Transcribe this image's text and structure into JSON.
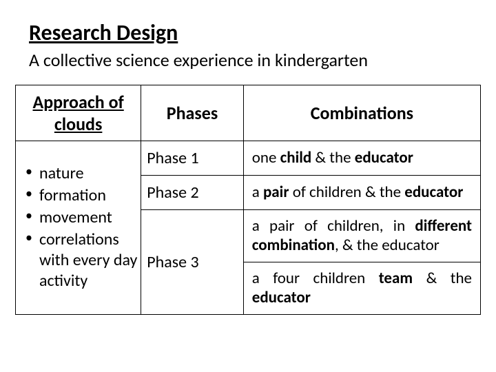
{
  "title": "Research Design",
  "subtitle": "A collective science experience in kindergarten",
  "headers": {
    "approach": "Approach of clouds",
    "phases": "Phases",
    "combinations": "Combinations"
  },
  "bullets": {
    "b1": "nature",
    "b2": "formation",
    "b3": "movement",
    "b4": "correlations with every day activity"
  },
  "phases": {
    "p1": "Phase 1",
    "p2": "Phase 2",
    "p3": "Phase 3"
  },
  "combos": {
    "c1_pre": "one ",
    "c1_b1": "child",
    "c1_mid": " & the ",
    "c1_b2": "educator",
    "c2_pre": "a ",
    "c2_b1": "pair",
    "c2_mid": " of children & the ",
    "c2_b2": "educator",
    "c3_pre": "a pair of children, in ",
    "c3_b1": "different combination",
    "c3_mid": ", & the educator",
    "c4_pre": "a four children ",
    "c4_b1": "team",
    "c4_mid": " & the ",
    "c4_b2": "educator"
  }
}
